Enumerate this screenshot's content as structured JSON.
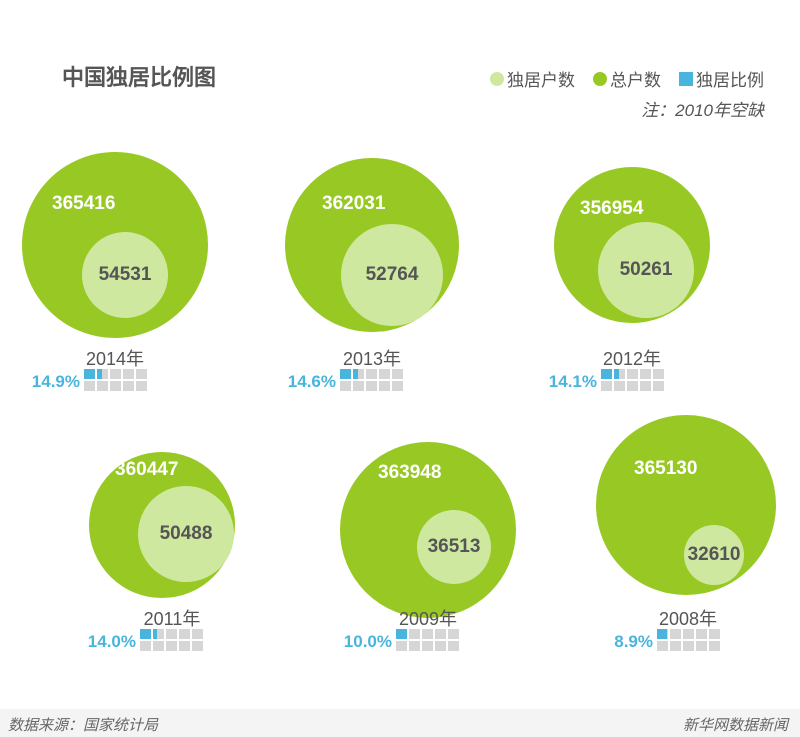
{
  "chart_data": {
    "type": "bubble",
    "title": "中国独居比例图",
    "legend": [
      {
        "label": "独居户数",
        "color": "#cfe89f",
        "shape": "circle"
      },
      {
        "label": "总户数",
        "color": "#97c824",
        "shape": "circle"
      },
      {
        "label": "独居比例",
        "color": "#4ab5dc",
        "shape": "square"
      }
    ],
    "note": "注：2010年空缺",
    "series": [
      {
        "year": "2014年",
        "total": 365416,
        "alone": 54531,
        "ratio": "14.9%",
        "ratio_value": 14.9
      },
      {
        "year": "2013年",
        "total": 362031,
        "alone": 52764,
        "ratio": "14.6%",
        "ratio_value": 14.6
      },
      {
        "year": "2012年",
        "total": 356954,
        "alone": 50261,
        "ratio": "14.1%",
        "ratio_value": 14.1
      },
      {
        "year": "2011年",
        "total": 360447,
        "alone": 50488,
        "ratio": "14.0%",
        "ratio_value": 14.0
      },
      {
        "year": "2009年",
        "total": 363948,
        "alone": 36513,
        "ratio": "10.0%",
        "ratio_value": 10.0
      },
      {
        "year": "2008年",
        "total": 365130,
        "alone": 32610,
        "ratio": "8.9%",
        "ratio_value": 8.9
      }
    ]
  },
  "footer": {
    "source": "数据来源：国家统计局",
    "brand": "新华网数据新闻"
  }
}
